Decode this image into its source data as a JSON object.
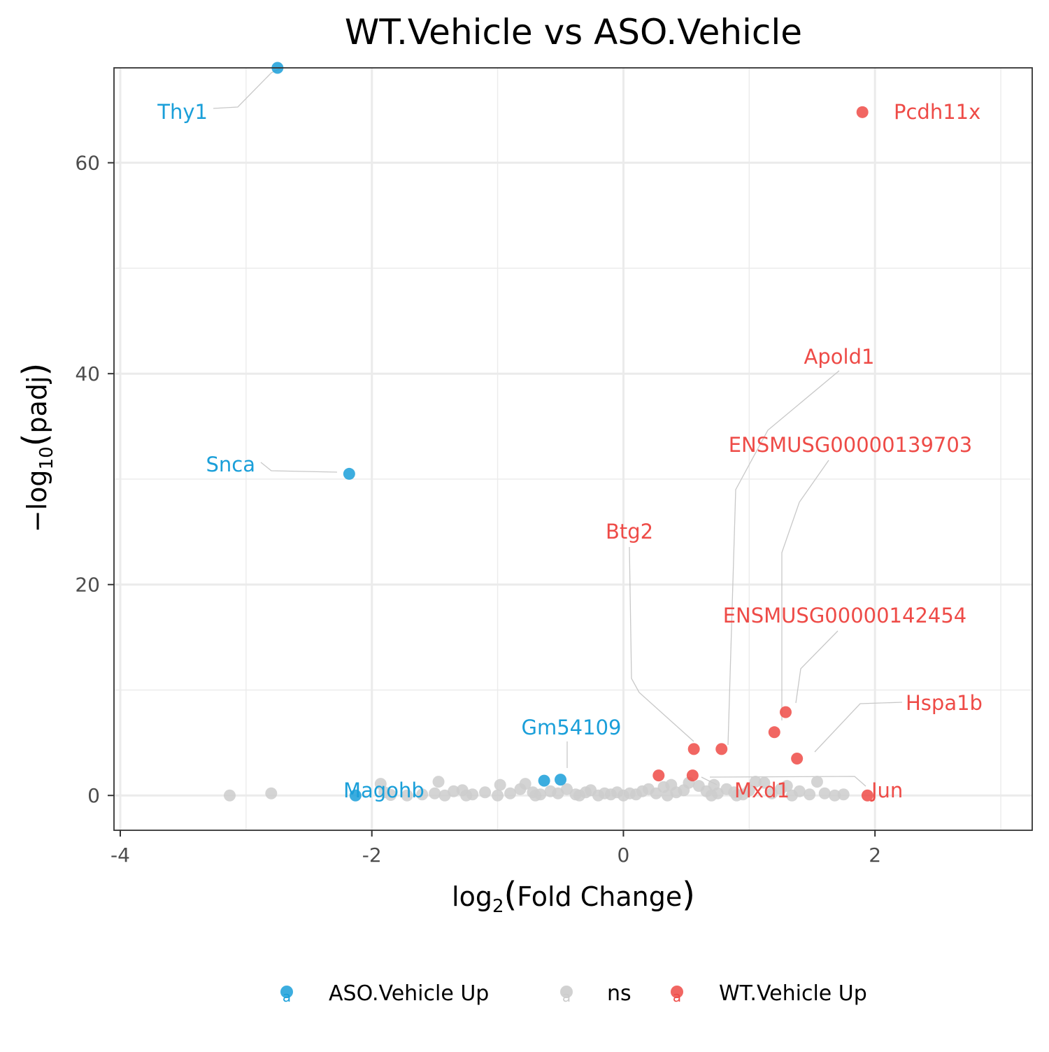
{
  "chart_data": {
    "type": "scatter",
    "title": "WT.Vehicle vs ASO.Vehicle",
    "xlabel": {
      "prefix": "log",
      "subscript": "2",
      "paren_open": "(",
      "text": "Fold Change",
      "paren_close": ")"
    },
    "ylabel": {
      "minus": "−",
      "prefix": "log",
      "subscript": "10",
      "paren_open": "(",
      "text": "padj",
      "paren_close": ")"
    },
    "xlim": [
      -4.05,
      3.25
    ],
    "ylim": [
      -3.3,
      69.0
    ],
    "x_ticks": [
      -4,
      -2,
      0,
      2
    ],
    "x_tick_labels": [
      "-4",
      "-2",
      "0",
      "2"
    ],
    "y_ticks": [
      0,
      20,
      40,
      60
    ],
    "y_tick_labels": [
      "0",
      "20",
      "40",
      "60"
    ],
    "grid": true,
    "legend_position": "bottom",
    "colors": {
      "ASO.Vehicle Up": "#1a9fd9",
      "ns": "#cccccc",
      "WT.Vehicle Up": "#ee4b47",
      "connector": "#c8c8c8",
      "grid": "#ebebeb",
      "panel_border": "#333333"
    },
    "legend": [
      {
        "name": "ASO.Vehicle Up",
        "color": "#1a9fd9",
        "key_glyph": "a"
      },
      {
        "name": "ns",
        "color": "#cccccc",
        "key_glyph": "a"
      },
      {
        "name": "WT.Vehicle Up",
        "color": "#ee4b47",
        "key_glyph": "a"
      }
    ],
    "series": [
      {
        "name": "ASO.Vehicle Up",
        "points": [
          {
            "x": -2.75,
            "y": 69.0,
            "label": "Thy1"
          },
          {
            "x": -2.18,
            "y": 30.5,
            "label": "Snca"
          },
          {
            "x": -0.5,
            "y": 1.5,
            "label": "Gm54109"
          },
          {
            "x": -0.63,
            "y": 1.4
          },
          {
            "x": -2.13,
            "y": 0.0,
            "label": "Magohb"
          }
        ]
      },
      {
        "name": "WT.Vehicle Up",
        "points": [
          {
            "x": 1.9,
            "y": 64.8,
            "label": "Pcdh11x"
          },
          {
            "x": 0.78,
            "y": 4.4,
            "label": "Apold1"
          },
          {
            "x": 1.29,
            "y": 7.9,
            "label": "ENSMUSG00000139703"
          },
          {
            "x": 0.56,
            "y": 4.4,
            "label": "Btg2"
          },
          {
            "x": 1.2,
            "y": 6.0,
            "label": "ENSMUSG00000142454"
          },
          {
            "x": 1.38,
            "y": 3.5,
            "label": "Hspa1b"
          },
          {
            "x": 0.55,
            "y": 1.9,
            "label": "Mxd1"
          },
          {
            "x": 0.28,
            "y": 1.9
          },
          {
            "x": 1.94,
            "y": 0.0,
            "label": "Jun"
          }
        ]
      },
      {
        "name": "ns",
        "points": [
          {
            "x": -3.13,
            "y": 0.0
          },
          {
            "x": -2.8,
            "y": 0.2
          },
          {
            "x": -1.93,
            "y": 1.1
          },
          {
            "x": -1.47,
            "y": 1.3
          },
          {
            "x": -1.9,
            "y": 0.3
          },
          {
            "x": -1.85,
            "y": 0.05
          },
          {
            "x": -1.72,
            "y": 0.0
          },
          {
            "x": -1.6,
            "y": 0.1
          },
          {
            "x": -1.5,
            "y": 0.2
          },
          {
            "x": -1.42,
            "y": 0.0
          },
          {
            "x": -1.35,
            "y": 0.4
          },
          {
            "x": -1.28,
            "y": 0.5
          },
          {
            "x": -1.2,
            "y": 0.1
          },
          {
            "x": -1.1,
            "y": 0.3
          },
          {
            "x": -1.0,
            "y": 0.0
          },
          {
            "x": -0.98,
            "y": 1.0
          },
          {
            "x": -0.9,
            "y": 0.2
          },
          {
            "x": -0.82,
            "y": 0.6
          },
          {
            "x": -0.78,
            "y": 1.1
          },
          {
            "x": -0.72,
            "y": 0.3
          },
          {
            "x": -0.66,
            "y": 0.1
          },
          {
            "x": -0.58,
            "y": 0.4
          },
          {
            "x": -0.52,
            "y": 0.2
          },
          {
            "x": -0.45,
            "y": 0.6
          },
          {
            "x": -0.38,
            "y": 0.1
          },
          {
            "x": -0.3,
            "y": 0.3
          },
          {
            "x": -0.26,
            "y": 0.5
          },
          {
            "x": -0.2,
            "y": 0.0
          },
          {
            "x": -0.15,
            "y": 0.2
          },
          {
            "x": -0.1,
            "y": 0.1
          },
          {
            "x": -0.05,
            "y": 0.3
          },
          {
            "x": 0.0,
            "y": 0.0
          },
          {
            "x": 0.05,
            "y": 0.2
          },
          {
            "x": 0.1,
            "y": 0.1
          },
          {
            "x": 0.15,
            "y": 0.4
          },
          {
            "x": 0.2,
            "y": 0.6
          },
          {
            "x": 0.26,
            "y": 0.2
          },
          {
            "x": 0.32,
            "y": 0.8
          },
          {
            "x": 0.38,
            "y": 1.0
          },
          {
            "x": 0.42,
            "y": 0.3
          },
          {
            "x": 0.48,
            "y": 0.5
          },
          {
            "x": 0.52,
            "y": 1.2
          },
          {
            "x": 0.6,
            "y": 0.9
          },
          {
            "x": 0.66,
            "y": 0.4
          },
          {
            "x": 0.72,
            "y": 1.0
          },
          {
            "x": 0.75,
            "y": 0.2
          },
          {
            "x": 0.82,
            "y": 0.6
          },
          {
            "x": 0.88,
            "y": 0.3
          },
          {
            "x": 0.95,
            "y": 0.1
          },
          {
            "x": 1.0,
            "y": 0.5
          },
          {
            "x": 1.05,
            "y": 1.3
          },
          {
            "x": 1.12,
            "y": 1.2
          },
          {
            "x": 1.18,
            "y": 0.2
          },
          {
            "x": 1.25,
            "y": 0.6
          },
          {
            "x": 1.3,
            "y": 0.9
          },
          {
            "x": 1.4,
            "y": 0.4
          },
          {
            "x": 1.48,
            "y": 0.1
          },
          {
            "x": 1.54,
            "y": 1.3
          },
          {
            "x": 1.6,
            "y": 0.2
          },
          {
            "x": 1.68,
            "y": 0.0
          },
          {
            "x": 1.75,
            "y": 0.1
          },
          {
            "x": 1.34,
            "y": 0.0
          },
          {
            "x": 0.7,
            "y": 0.0
          },
          {
            "x": -0.7,
            "y": 0.0
          },
          {
            "x": -1.25,
            "y": 0.0
          },
          {
            "x": -0.35,
            "y": 0.0
          },
          {
            "x": 0.35,
            "y": 0.0
          },
          {
            "x": 0.9,
            "y": 0.0
          }
        ]
      }
    ]
  }
}
